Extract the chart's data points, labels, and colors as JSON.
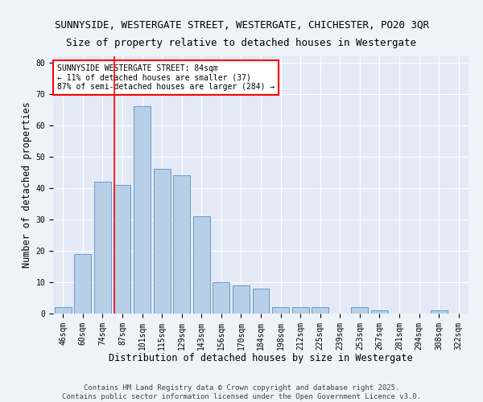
{
  "title_line1": "SUNNYSIDE, WESTERGATE STREET, WESTERGATE, CHICHESTER, PO20 3QR",
  "title_line2": "Size of property relative to detached houses in Westergate",
  "xlabel": "Distribution of detached houses by size in Westergate",
  "ylabel": "Number of detached properties",
  "categories": [
    "46sqm",
    "60sqm",
    "74sqm",
    "87sqm",
    "101sqm",
    "115sqm",
    "129sqm",
    "143sqm",
    "156sqm",
    "170sqm",
    "184sqm",
    "198sqm",
    "212sqm",
    "225sqm",
    "239sqm",
    "253sqm",
    "267sqm",
    "281sqm",
    "294sqm",
    "308sqm",
    "322sqm"
  ],
  "values": [
    2,
    19,
    42,
    41,
    66,
    46,
    44,
    31,
    10,
    9,
    8,
    2,
    2,
    2,
    0,
    2,
    1,
    0,
    0,
    1,
    0
  ],
  "bar_color": "#b8cfe8",
  "bar_edge_color": "#6699cc",
  "annotation_text_line1": "SUNNYSIDE WESTERGATE STREET: 84sqm",
  "annotation_text_line2": "← 11% of detached houses are smaller (37)",
  "annotation_text_line3": "87% of semi-detached houses are larger (284) →",
  "red_line_x": 2.575,
  "ylim": [
    0,
    82
  ],
  "yticks": [
    0,
    10,
    20,
    30,
    40,
    50,
    60,
    70,
    80
  ],
  "footer_line1": "Contains HM Land Registry data © Crown copyright and database right 2025.",
  "footer_line2": "Contains public sector information licensed under the Open Government Licence v3.0.",
  "background_color": "#eef2f9",
  "plot_bg_color": "#e4eaf5",
  "grid_color": "#ffffff",
  "title_fontsize": 9,
  "axis_label_fontsize": 8.5,
  "tick_fontsize": 7,
  "annotation_fontsize": 7,
  "footer_fontsize": 6.5
}
